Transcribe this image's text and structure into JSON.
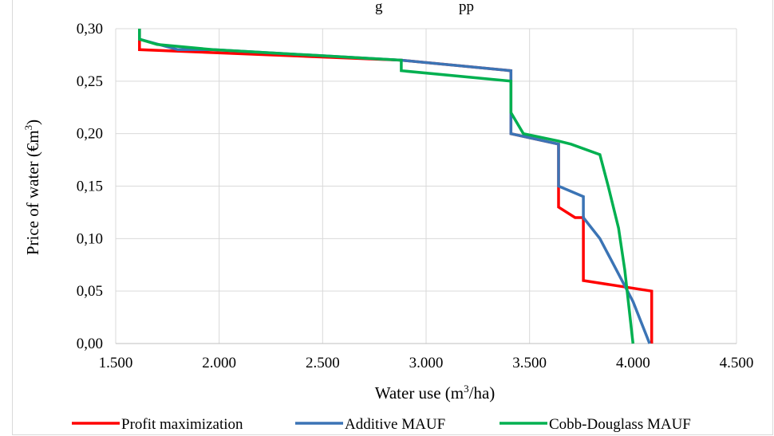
{
  "chart_data": {
    "type": "line",
    "title": "",
    "top_text_fragment": "g",
    "top_text_fragment_2": "pp",
    "xlabel": "Water use (m",
    "xlabel_sup": "3",
    "xlabel_tail": "/ha)",
    "ylabel": "Price  of water  (€m",
    "ylabel_sup": "3",
    "ylabel_tail": ")",
    "xlim": [
      1500,
      4500
    ],
    "ylim": [
      0,
      0.3
    ],
    "x_ticks": [
      1500,
      2000,
      2500,
      3000,
      3500,
      4000,
      4500
    ],
    "x_tick_labels": [
      "1.500",
      "2.000",
      "2.500",
      "3.000",
      "3.500",
      "4.000",
      "4.500"
    ],
    "y_ticks": [
      0,
      0.05,
      0.1,
      0.15,
      0.2,
      0.25,
      0.3
    ],
    "y_tick_labels": [
      "0,00",
      "0,05",
      "0,10",
      "0,15",
      "0,20",
      "0,25",
      "0,30"
    ],
    "grid": true,
    "legend_position": "bottom",
    "series": [
      {
        "name": "Profit maximization",
        "color": "#ff0000",
        "points": [
          [
            1615,
            0.3
          ],
          [
            1615,
            0.28
          ],
          [
            2880,
            0.27
          ],
          [
            3410,
            0.26
          ],
          [
            3410,
            0.2
          ],
          [
            3640,
            0.19
          ],
          [
            3640,
            0.13
          ],
          [
            3720,
            0.12
          ],
          [
            3760,
            0.12
          ],
          [
            3760,
            0.06
          ],
          [
            4090,
            0.05
          ],
          [
            4090,
            0.0
          ]
        ]
      },
      {
        "name": "Additive MAUF",
        "color": "#3b74b5",
        "points": [
          [
            1615,
            0.3
          ],
          [
            1615,
            0.29
          ],
          [
            1800,
            0.28
          ],
          [
            1970,
            0.28
          ],
          [
            2880,
            0.27
          ],
          [
            3410,
            0.26
          ],
          [
            3410,
            0.2
          ],
          [
            3640,
            0.19
          ],
          [
            3640,
            0.15
          ],
          [
            3760,
            0.14
          ],
          [
            3760,
            0.12
          ],
          [
            3840,
            0.1
          ],
          [
            3920,
            0.07
          ],
          [
            4000,
            0.04
          ],
          [
            4080,
            0.0
          ]
        ]
      },
      {
        "name": "Cobb-Douglass MAUF",
        "color": "#00b050",
        "points": [
          [
            1615,
            0.3
          ],
          [
            1615,
            0.29
          ],
          [
            1700,
            0.285
          ],
          [
            1970,
            0.28
          ],
          [
            2880,
            0.27
          ],
          [
            2880,
            0.26
          ],
          [
            3410,
            0.25
          ],
          [
            3410,
            0.22
          ],
          [
            3470,
            0.2
          ],
          [
            3640,
            0.193
          ],
          [
            3700,
            0.19
          ],
          [
            3840,
            0.18
          ],
          [
            3880,
            0.15
          ],
          [
            3930,
            0.11
          ],
          [
            3960,
            0.07
          ],
          [
            4000,
            0.0
          ]
        ]
      }
    ]
  }
}
